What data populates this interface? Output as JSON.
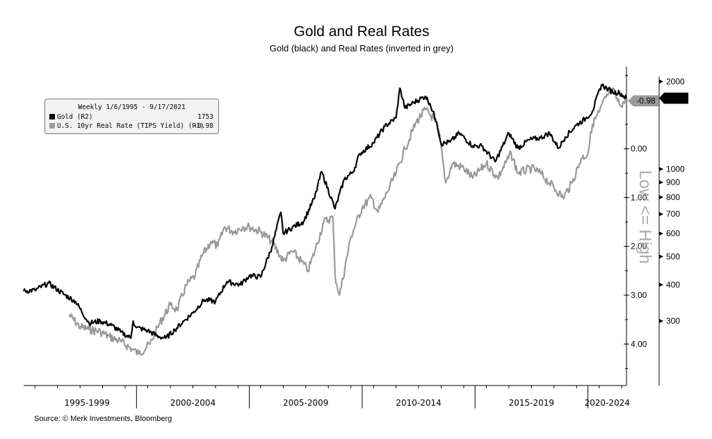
{
  "title": "Gold and Real Rates",
  "subtitle": "Gold (black) and Real Rates (inverted in grey)",
  "source": "Source: © Merk Investments, Bloomberg",
  "legend": {
    "header": "Weekly 1/6/1995 - 9/17/2021",
    "gold_label": "Gold (R2)",
    "gold_value": "1753",
    "rate_label": "U.S. 10yr Real Rate (TIPS Yield) (R1)",
    "rate_value": "-0.98"
  },
  "axis_note": "Low <= High",
  "callouts": {
    "rate": "-0.98",
    "gold": "1753"
  },
  "colors": {
    "gold": "#000000",
    "rate": "#999999",
    "callout_rate_bg": "#9a9a9a",
    "callout_gold_bg": "#000000"
  },
  "chart_data": {
    "type": "line",
    "title": "Gold and Real Rates",
    "subtitle": "Gold (black) and Real Rates (inverted in grey)",
    "x_periods": [
      "1995-1999",
      "2000-2004",
      "2005-2009",
      "2010-2014",
      "2015-2019",
      "2020-2024"
    ],
    "x_range": [
      1995.0,
      2021.71
    ],
    "rate_axis": {
      "label": "R1",
      "inverted": true,
      "range": [
        4.85,
        -1.68
      ],
      "ticks": [
        "0.00",
        "1.00",
        "2.00",
        "3.00",
        "4.00"
      ],
      "tick_values": [
        0,
        1,
        2,
        3,
        4
      ]
    },
    "gold_axis": {
      "label": "R2",
      "scale": "log",
      "range": [
        180,
        2250
      ],
      "ticks": [
        "2000",
        "1000",
        "900",
        "800",
        "700",
        "600",
        "500",
        "400",
        "300"
      ],
      "tick_values": [
        2000,
        1000,
        900,
        800,
        700,
        600,
        500,
        400,
        300
      ]
    },
    "grid": false,
    "legend_position": "top-left",
    "series": [
      {
        "name": "Gold (R2)",
        "axis": "R2",
        "x": [
          1995.0,
          1995.5,
          1996.1,
          1996.8,
          1997.3,
          1997.9,
          1998.4,
          1998.9,
          1999.3,
          1999.75,
          1999.85,
          2000.0,
          2000.5,
          2001.0,
          2001.3,
          2001.7,
          2002.1,
          2002.5,
          2003.0,
          2003.5,
          2004.0,
          2004.6,
          2005.0,
          2005.5,
          2006.0,
          2006.4,
          2006.5,
          2006.9,
          2007.4,
          2007.9,
          2008.2,
          2008.8,
          2009.2,
          2009.6,
          2009.9,
          2010.5,
          2011.0,
          2011.5,
          2011.67,
          2011.9,
          2012.3,
          2012.8,
          2013.0,
          2013.3,
          2013.5,
          2013.9,
          2014.3,
          2014.9,
          2015.3,
          2015.9,
          2016.5,
          2016.9,
          2017.4,
          2017.9,
          2018.3,
          2018.7,
          2019.0,
          2019.5,
          2019.9,
          2020.2,
          2020.6,
          2020.9,
          2021.1,
          2021.4,
          2021.71
        ],
        "y": [
          380,
          383,
          405,
          370,
          350,
          295,
          300,
          290,
          275,
          262,
          300,
          285,
          278,
          265,
          262,
          280,
          300,
          320,
          355,
          350,
          410,
          400,
          430,
          425,
          540,
          710,
          600,
          630,
          660,
          800,
          980,
          730,
          920,
          980,
          1130,
          1230,
          1400,
          1500,
          1900,
          1620,
          1700,
          1780,
          1680,
          1450,
          1220,
          1240,
          1330,
          1200,
          1200,
          1060,
          1330,
          1180,
          1260,
          1280,
          1330,
          1180,
          1290,
          1420,
          1490,
          1580,
          1950,
          1880,
          1840,
          1830,
          1753
        ]
      },
      {
        "name": "U.S. 10yr Real Rate (TIPS Yield) (R1)",
        "axis": "R1",
        "x": [
          1997.0,
          1997.5,
          1997.9,
          1998.4,
          1998.8,
          1999.3,
          1999.8,
          2000.1,
          2000.6,
          2001.0,
          2001.5,
          2001.8,
          2002.2,
          2002.6,
          2002.9,
          2003.3,
          2003.6,
          2003.9,
          2004.3,
          2004.7,
          2005.0,
          2005.5,
          2006.0,
          2006.5,
          2006.9,
          2007.3,
          2007.6,
          2007.9,
          2008.3,
          2008.7,
          2008.8,
          2009.0,
          2009.5,
          2010.0,
          2010.4,
          2010.7,
          2011.1,
          2011.5,
          2011.9,
          2012.4,
          2012.8,
          2013.2,
          2013.4,
          2013.7,
          2014.0,
          2014.5,
          2014.9,
          2015.5,
          2016.0,
          2016.6,
          2016.9,
          2017.5,
          2017.9,
          2018.3,
          2018.9,
          2019.3,
          2019.7,
          2020.0,
          2020.2,
          2020.5,
          2020.8,
          2021.1,
          2021.4,
          2021.71
        ],
        "y": [
          3.4,
          3.65,
          3.7,
          3.75,
          3.85,
          3.95,
          4.1,
          4.2,
          4.0,
          3.6,
          3.2,
          3.3,
          2.8,
          2.6,
          2.2,
          1.9,
          2.0,
          1.6,
          1.7,
          1.6,
          1.6,
          1.7,
          1.9,
          2.3,
          2.1,
          2.3,
          2.5,
          2.1,
          1.5,
          1.4,
          2.6,
          3.0,
          1.8,
          1.2,
          1.0,
          1.3,
          0.9,
          0.5,
          0.0,
          -0.55,
          -0.8,
          -0.6,
          -0.35,
          0.7,
          0.3,
          0.4,
          0.6,
          0.3,
          0.6,
          0.1,
          0.5,
          0.4,
          0.5,
          0.7,
          1.0,
          0.7,
          0.2,
          0.1,
          -0.5,
          -0.75,
          -1.05,
          -1.2,
          -0.9,
          -0.98
        ]
      }
    ]
  }
}
